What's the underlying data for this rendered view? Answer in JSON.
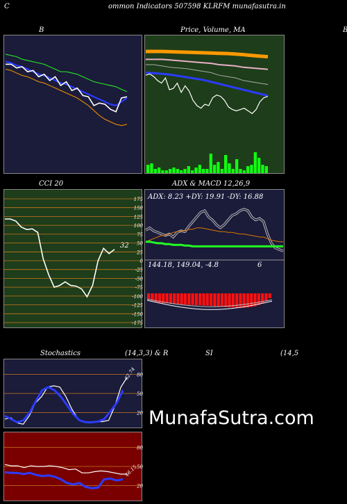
{
  "header": {
    "edge_left": "C",
    "title": "ommon  Indicators 507598  KLRFM munafasutra.in",
    "edge_right": "B"
  },
  "watermark": "MunafaSutra.com",
  "colors": {
    "navy": "#1b1b3a",
    "green_bg": "#1e3d1a",
    "red_bg": "#7a0000",
    "grid_orange": "#c8781e"
  },
  "chart_data": [
    {
      "id": "bollinger",
      "type": "line",
      "title": "B",
      "series": [
        {
          "color": "#22dd22",
          "values": [
            90,
            89,
            88,
            86,
            85,
            84,
            83,
            82,
            80,
            78,
            76,
            76,
            75,
            74,
            72,
            70,
            68,
            67,
            66,
            65,
            64,
            62,
            60
          ]
        },
        {
          "color": "#2a3cff",
          "values": [
            84,
            83,
            81,
            80,
            78,
            76,
            74,
            73,
            71,
            69,
            67,
            66,
            64,
            62,
            60,
            58,
            56,
            54,
            52,
            50,
            49,
            52,
            55
          ]
        },
        {
          "color": "#ffffff",
          "values": [
            82,
            82,
            79,
            80,
            76,
            77,
            72,
            74,
            69,
            72,
            65,
            68,
            61,
            63,
            57,
            56,
            49,
            51,
            50,
            46,
            44,
            55,
            56
          ]
        },
        {
          "color": "#dd8800",
          "values": [
            78,
            77,
            75,
            73,
            72,
            70,
            68,
            67,
            65,
            63,
            61,
            59,
            57,
            55,
            52,
            49,
            45,
            41,
            38,
            36,
            34,
            33,
            34
          ]
        }
      ]
    },
    {
      "id": "price_ma",
      "type": "line",
      "title": "Price,  Volume,  MA",
      "series": [
        {
          "color": "#ff9900",
          "values": [
            90,
            90,
            90,
            89.8,
            89.6,
            89.4,
            89.2,
            89,
            88.8,
            88.6,
            88.4,
            88,
            87.6,
            87,
            86.5,
            86
          ]
        },
        {
          "color": "#e8b0c8",
          "values": [
            84,
            84,
            84,
            83.5,
            83,
            82.5,
            82,
            81.5,
            81,
            80,
            79.5,
            79,
            78,
            77.5,
            77,
            76.5
          ]
        },
        {
          "color": "#aaaaaa",
          "values": [
            80,
            80,
            79,
            78,
            77.5,
            77,
            76,
            75,
            74,
            72,
            71,
            70,
            68,
            67,
            66,
            65
          ]
        },
        {
          "color": "#2a3cff",
          "values": [
            74,
            73.5,
            73,
            72.5,
            71.5,
            70.5,
            69.5,
            68.5,
            67,
            65.5,
            64,
            62.5,
            61,
            59.5,
            58,
            56.5
          ]
        },
        {
          "color": "#ffffff",
          "values": [
            72,
            73,
            71,
            68,
            66,
            70,
            61,
            62,
            66,
            59,
            64,
            60,
            53,
            49,
            47,
            50,
            49,
            55,
            57,
            56,
            53,
            48,
            46,
            45,
            46,
            47,
            45,
            43,
            46,
            52,
            55,
            56
          ]
        }
      ],
      "volume": {
        "color": "#11ff11",
        "values": [
          6,
          7,
          3,
          4,
          2,
          2,
          3,
          4,
          3,
          2,
          3,
          5,
          2,
          4,
          6,
          3,
          3,
          14,
          6,
          8,
          3,
          13,
          7,
          3,
          10,
          3,
          2,
          5,
          6,
          15,
          11,
          6,
          5
        ]
      }
    },
    {
      "id": "cci",
      "type": "line",
      "title": "CCI 20",
      "ylim": [
        -175,
        175
      ],
      "ticks": [
        "175",
        "150",
        "125",
        "100",
        "75",
        "50",
        "25",
        "0",
        "-25",
        "-50",
        "-75",
        "-100",
        "-125",
        "-150",
        "-175"
      ],
      "last_label": "32",
      "series": [
        {
          "color": "#ffffff",
          "values": [
            118,
            118,
            112,
            95,
            88,
            90,
            80,
            5,
            -40,
            -75,
            -70,
            -60,
            -70,
            -72,
            -80,
            -102,
            -70,
            0,
            35,
            20,
            32
          ]
        }
      ]
    },
    {
      "id": "adx_macd",
      "type": "line",
      "title": "ADX  & MACD 12,26,9",
      "adx_readout": "ADX: 8.23 +DY: 19.91 -DY: 16.88",
      "macd_readout": "144.18,  149.04,  -4.8",
      "macd_extra": "6",
      "series": [
        {
          "color": "#ffffff",
          "values": [
            35,
            38,
            34,
            32,
            30,
            28,
            30,
            26,
            32,
            34,
            33,
            40,
            46,
            52,
            58,
            60,
            52,
            48,
            42,
            38,
            42,
            48,
            54,
            56,
            60,
            62,
            60,
            52,
            48,
            50,
            46,
            30,
            18,
            12,
            10,
            8
          ]
        },
        {
          "color": "#dd7700",
          "values": [
            20,
            22,
            24,
            26,
            28,
            28,
            30,
            32,
            33,
            34,
            34,
            36,
            36,
            38,
            38,
            37,
            36,
            35,
            34,
            33,
            33,
            32,
            32,
            31,
            30,
            30,
            29,
            28,
            27,
            26,
            26,
            24,
            22,
            21,
            20,
            20
          ]
        },
        {
          "color": "#22ff22",
          "values": [
            20,
            20,
            19,
            18,
            18,
            17,
            17,
            16,
            16,
            16,
            15,
            15,
            14,
            14,
            14,
            14,
            14,
            14,
            14,
            14,
            14,
            14,
            14,
            14,
            14,
            14,
            14,
            14,
            14,
            14,
            14,
            14,
            14,
            14,
            14,
            14
          ]
        }
      ],
      "histogram": {
        "values": [
          -2,
          -2.4,
          -2.8,
          -3,
          -3.2,
          -3.2,
          -3.4,
          -3.5,
          -3.6,
          -3.6,
          -3.7,
          -3.8,
          -3.8,
          -3.9,
          -3.9,
          -4,
          -4,
          -4.1,
          -4.2,
          -4.3,
          -4.4,
          -4.5,
          -4.6,
          -4.6,
          -4.7,
          -4.7,
          -4.7,
          -4.6,
          -4.4,
          -4.2,
          -3.8,
          -3.3,
          -2.6,
          -1.6
        ]
      }
    },
    {
      "id": "stochastics",
      "type": "line",
      "title": "Stochastics",
      "params": "(14,3,3) & R",
      "ylim": [
        0,
        100
      ],
      "ticks": [
        "80",
        "50",
        "20"
      ],
      "last_label": "62.74",
      "series": [
        {
          "color": "#ffffff",
          "values": [
            10,
            12,
            4,
            2,
            15,
            35,
            45,
            60,
            62,
            60,
            45,
            25,
            10,
            5,
            4,
            6,
            6,
            8,
            30,
            60,
            75
          ]
        },
        {
          "color": "#2a3cff",
          "values": [
            15,
            10,
            5,
            8,
            20,
            38,
            55,
            60,
            55,
            45,
            32,
            18,
            8,
            5,
            5,
            6,
            10,
            22,
            35,
            55
          ]
        }
      ]
    },
    {
      "id": "williams_r",
      "type": "line",
      "ylim": [
        0,
        100
      ],
      "ticks": [
        "80",
        "50",
        "20"
      ],
      "last_label": "46.15",
      "series": [
        {
          "color": "#ffffff",
          "values": [
            53,
            51,
            51,
            48,
            51,
            50,
            50,
            51,
            50,
            48,
            45,
            46,
            40,
            40,
            42,
            43,
            42,
            40,
            38,
            38
          ]
        },
        {
          "color": "#2a3cff",
          "values": [
            41,
            40,
            40,
            38,
            40,
            37,
            35,
            36,
            34,
            30,
            24,
            22,
            24,
            18,
            16,
            17,
            30,
            31,
            28,
            30
          ]
        }
      ]
    },
    {
      "id": "rsi",
      "type": "line",
      "title": "SI",
      "params": "(14,5"
    }
  ]
}
